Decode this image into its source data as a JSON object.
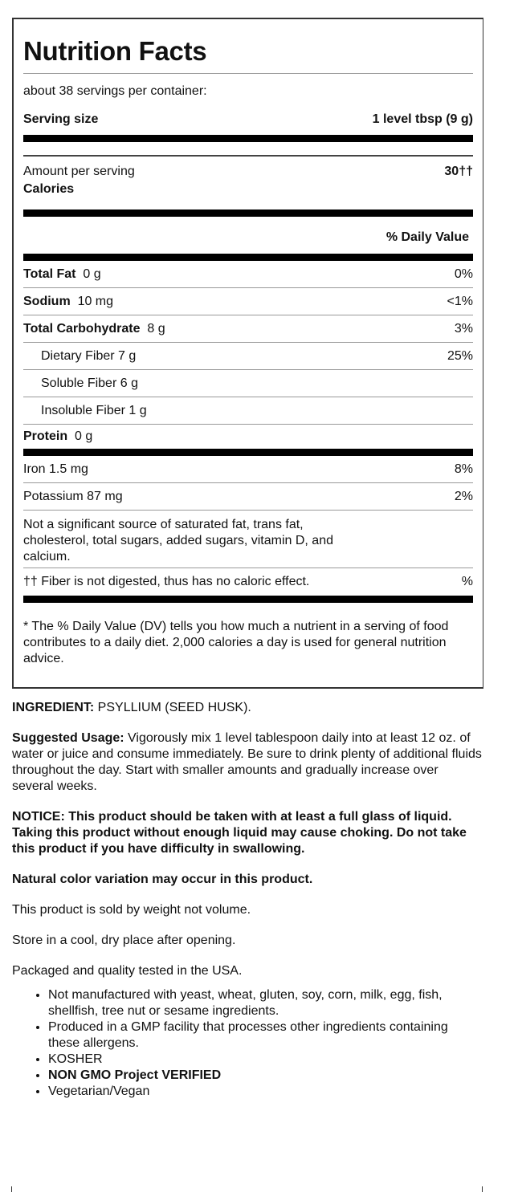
{
  "label": {
    "title": "Nutrition Facts",
    "servings": "about 38 servings per container:",
    "serving_size_label": "Serving size",
    "serving_size_value": "1 level tbsp (9 g)",
    "amount_per_serving": "Amount per serving",
    "calories_label": "Calories",
    "calories_value": "30††",
    "dv_header": "% Daily Value",
    "nutrients": [
      {
        "name": "Total Fat",
        "amount": "0 g",
        "dv": "0%"
      },
      {
        "name": "Sodium",
        "amount": "10 mg",
        "dv": "<1%"
      },
      {
        "name": "Total Carbohydrate",
        "amount": "8 g",
        "dv": "3%"
      },
      {
        "name": "Dietary Fiber 7 g",
        "dv": "25%"
      },
      {
        "name": "Soluble Fiber 6 g",
        "dv": ""
      },
      {
        "name": "Insoluble Fiber 1 g",
        "dv": ""
      },
      {
        "name": "Protein",
        "amount": "0 g",
        "dv": ""
      },
      {
        "name": "Iron 1.5 mg",
        "dv": "8%"
      },
      {
        "name": "Potassium 87 mg",
        "dv": "2%"
      }
    ],
    "not_significant": "Not a significant source of saturated fat, trans fat, cholesterol, total sugars, added sugars, vitamin D, and calcium.",
    "fiber_note": "†† Fiber is not digested, thus has no caloric effect.",
    "fiber_note_dv": "%",
    "dv_footnote": "* The % Daily Value (DV) tells you how much a nutrient in a serving of food contributes to a daily diet. 2,000 calories a day is used for general nutrition advice."
  },
  "info": {
    "ingredient_label": "INGREDIENT:",
    "ingredient_value": " PSYLLIUM (SEED HUSK).",
    "usage_label": "Suggested Usage:",
    "usage_value": " Vigorously mix 1 level tablespoon daily into at least 12 oz. of water or juice and consume immediately. Be sure to drink plenty of additional fluids throughout the day. Start with smaller amounts and gradually increase over several weeks.",
    "notice": "NOTICE: This product should be taken with at least a full glass of liquid. Taking this product without enough liquid may cause choking. Do not take this product if you have difficulty in swallowing.",
    "color_variation": "Natural color variation may occur in this product.",
    "sold_by_weight": "This product is sold by weight not volume.",
    "storage": "Store in a cool, dry place after opening.",
    "packaged": "Packaged and quality tested in the USA.",
    "bullets": [
      "Not manufactured with yeast, wheat, gluten, soy, corn, milk, egg, fish, shellfish, tree nut or sesame ingredients.",
      "Produced in a GMP facility that processes other ingredients containing these allergens.",
      "KOSHER",
      "NON GMO Project VERIFIED",
      "Vegetarian/Vegan"
    ]
  }
}
